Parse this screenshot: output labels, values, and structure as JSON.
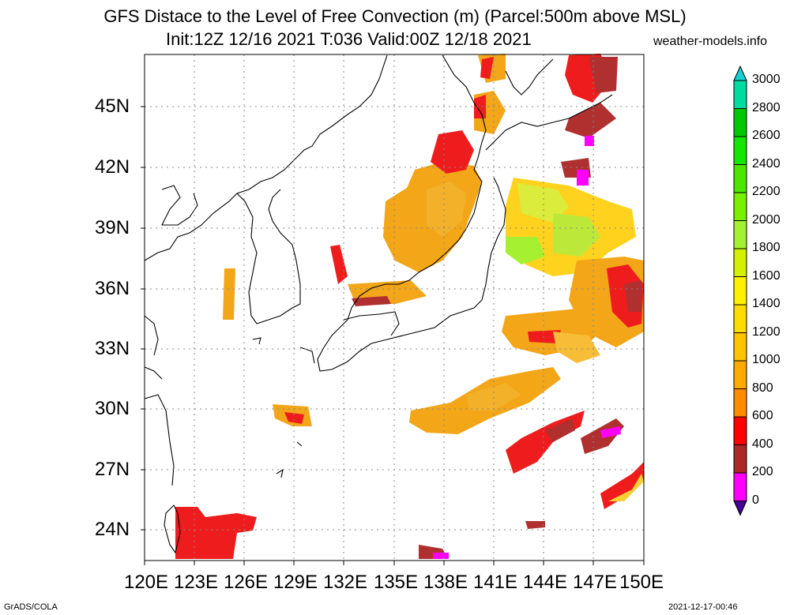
{
  "header": {
    "title_line1": "GFS Distace to the Level of Free Convection (m) (Parcel:500m above MSL)",
    "title_line2": "Init:12Z 12/16 2021 T:036 Valid:00Z 12/18 2021",
    "site": "weather-models.info"
  },
  "footer": {
    "left": "GrADS/COLA",
    "right": "2021-12-17-00:46"
  },
  "axes": {
    "lat_labels": [
      "45N",
      "42N",
      "39N",
      "36N",
      "33N",
      "30N",
      "27N",
      "24N"
    ],
    "lon_labels": [
      "120E",
      "123E",
      "126E",
      "129E",
      "132E",
      "135E",
      "138E",
      "141E",
      "144E",
      "147E",
      "150E"
    ]
  },
  "colorbar": {
    "labels": [
      "3000",
      "2800",
      "2600",
      "2400",
      "2200",
      "2000",
      "1800",
      "1600",
      "1400",
      "1200",
      "1000",
      "800",
      "600",
      "400",
      "200",
      "0"
    ],
    "colors": [
      "#14d2d2",
      "#00dca0",
      "#00c800",
      "#14e600",
      "#4ce600",
      "#78f000",
      "#a6f032",
      "#d2f000",
      "#fff000",
      "#ffdc00",
      "#ffc400",
      "#ffaa00",
      "#ff8c00",
      "#ff0000",
      "#aa2828",
      "#ff00ff",
      "#460096"
    ]
  }
}
